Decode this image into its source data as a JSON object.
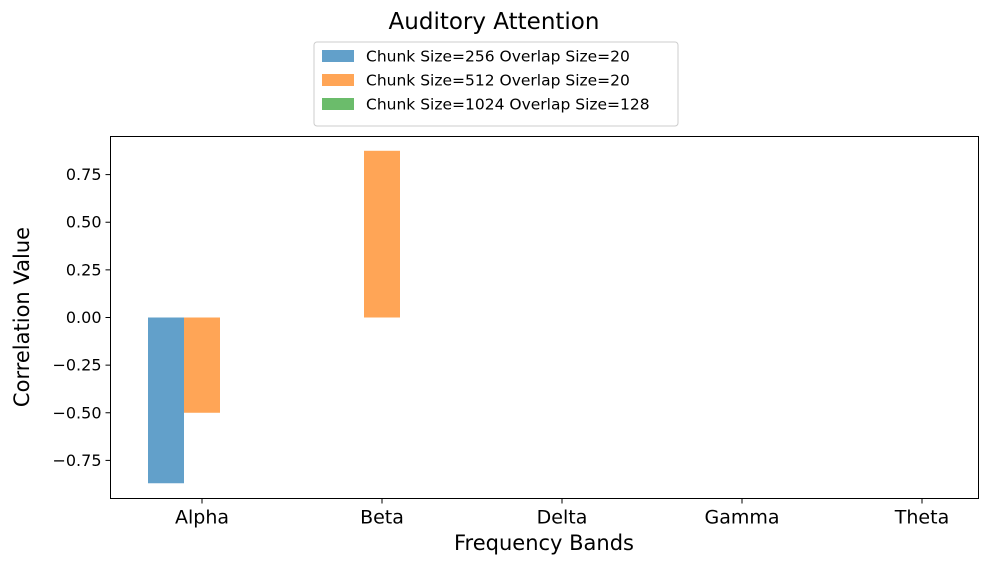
{
  "chart_data": {
    "type": "bar",
    "title": "Auditory Attention",
    "xlabel": "Frequency Bands",
    "ylabel": "Correlation Value",
    "categories": [
      "Alpha",
      "Beta",
      "Delta",
      "Gamma",
      "Theta"
    ],
    "series": [
      {
        "name": "Chunk Size=256 Overlap Size=20",
        "color": "#1f77b4",
        "values": [
          -0.87,
          null,
          null,
          null,
          null
        ]
      },
      {
        "name": "Chunk Size=512 Overlap Size=20",
        "color": "#ff7f0e",
        "values": [
          -0.5,
          0.875,
          null,
          null,
          null
        ]
      },
      {
        "name": "Chunk Size=1024 Overlap Size=128",
        "color": "#2ca02c",
        "values": [
          null,
          null,
          null,
          null,
          null
        ]
      }
    ],
    "ylim": [
      -0.95,
      0.95
    ],
    "yticks": [
      -0.75,
      -0.5,
      -0.25,
      0.0,
      0.25,
      0.5,
      0.75
    ],
    "ytick_labels": [
      "−0.75",
      "−0.50",
      "−0.25",
      "0.00",
      "0.25",
      "0.50",
      "0.75"
    ],
    "bar_alpha": 0.7,
    "grid": false,
    "legend_position": "top-center"
  }
}
